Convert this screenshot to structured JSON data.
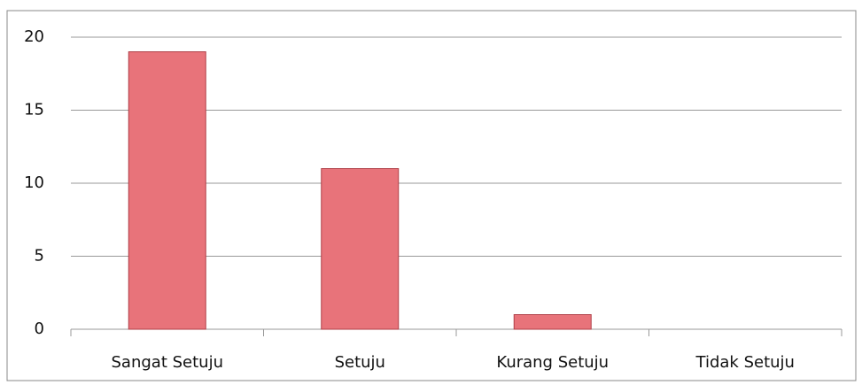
{
  "chart_data": {
    "type": "bar",
    "categories": [
      "Sangat Setuju",
      "Setuju",
      "Kurang Setuju",
      "Tidak Setuju"
    ],
    "values": [
      19,
      11,
      1,
      0
    ],
    "color": "#e8737a",
    "ylim": [
      0,
      20
    ],
    "yticks": [
      0,
      5,
      10,
      15,
      20
    ],
    "grid": true
  }
}
